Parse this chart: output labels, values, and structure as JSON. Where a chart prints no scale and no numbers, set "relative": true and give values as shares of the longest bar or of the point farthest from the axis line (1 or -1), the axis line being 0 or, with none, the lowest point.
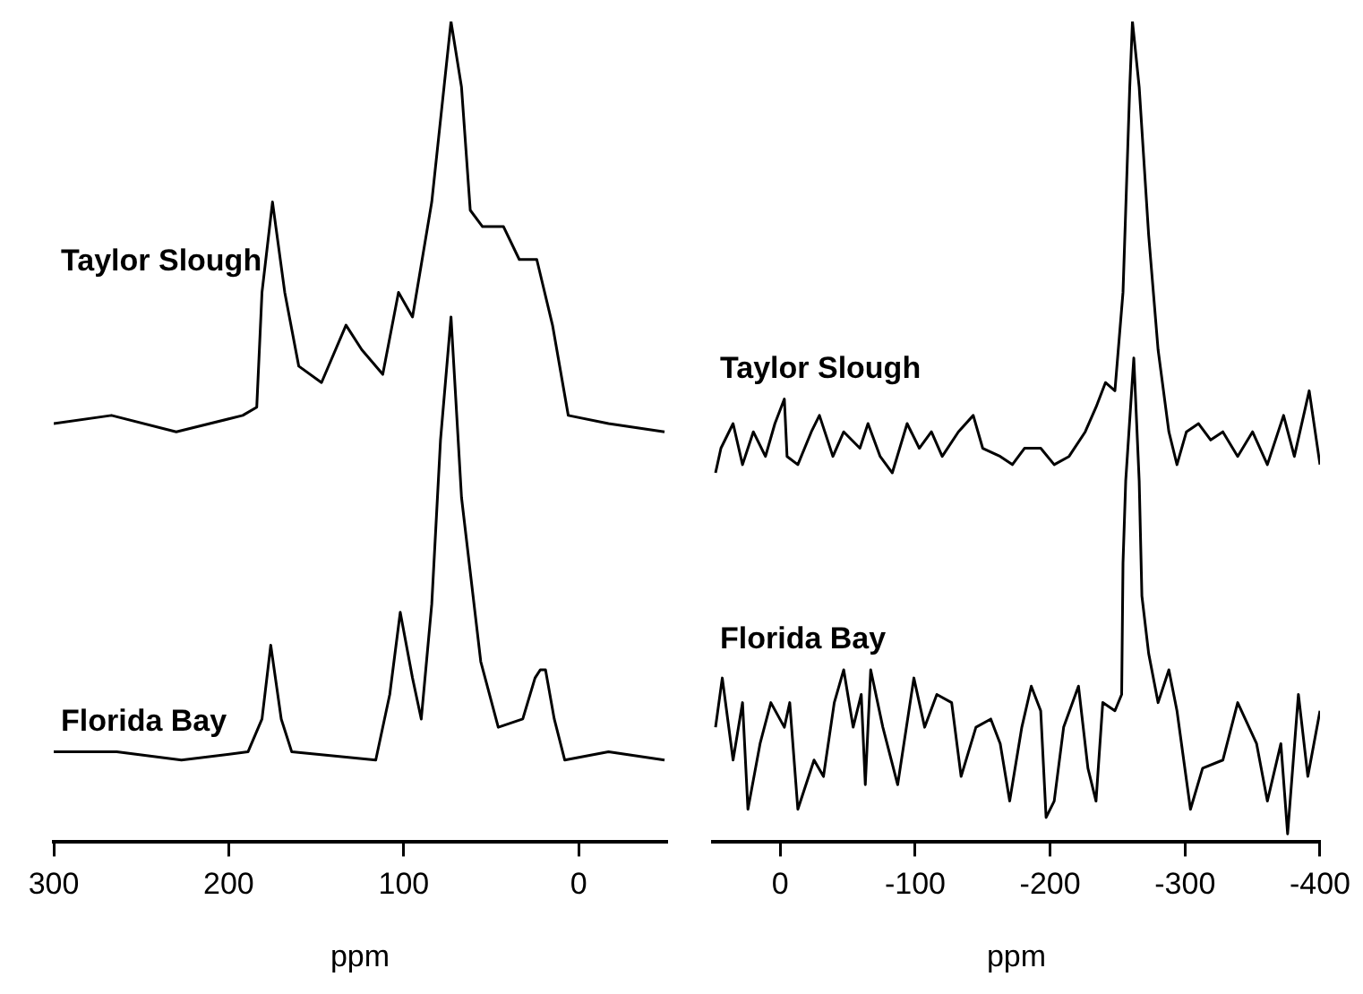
{
  "chart_data": [
    {
      "type": "line",
      "relative": true,
      "xlabel": "ppm",
      "xlim": [
        300,
        -50
      ],
      "xticks": [
        300,
        200,
        100,
        0
      ],
      "series": [
        {
          "name": "Taylor Slough",
          "color": "#000000",
          "x": [
            300,
            267,
            230,
            192,
            184,
            181,
            175,
            168,
            160,
            147,
            133,
            124,
            112,
            103,
            95,
            84,
            77,
            73,
            67,
            62,
            55,
            43,
            34,
            24,
            15,
            6,
            -17,
            -49
          ],
          "values": [
            0.51,
            0.52,
            0.5,
            0.52,
            0.53,
            0.67,
            0.78,
            0.67,
            0.58,
            0.56,
            0.63,
            0.6,
            0.57,
            0.67,
            0.64,
            0.78,
            0.92,
            1,
            0.92,
            0.77,
            0.75,
            0.75,
            0.71,
            0.71,
            0.63,
            0.52,
            0.51,
            0.5
          ]
        },
        {
          "name": "Florida Bay",
          "color": "#000000",
          "x": [
            300,
            264,
            227,
            189,
            181,
            176,
            170,
            164,
            116,
            108,
            102,
            95,
            90,
            84,
            79,
            73,
            67,
            56,
            46,
            32,
            25,
            22,
            19,
            14,
            8,
            -17,
            -49
          ],
          "values": [
            0.11,
            0.11,
            0.1,
            0.11,
            0.15,
            0.24,
            0.15,
            0.11,
            0.1,
            0.18,
            0.28,
            0.2,
            0.15,
            0.29,
            0.49,
            0.64,
            0.42,
            0.22,
            0.14,
            0.15,
            0.2,
            0.21,
            0.21,
            0.15,
            0.1,
            0.11,
            0.1
          ]
        }
      ]
    },
    {
      "type": "line",
      "relative": true,
      "xlabel": "ppm",
      "xlim": [
        50,
        -400
      ],
      "xticks": [
        0,
        -100,
        -200,
        -300,
        -400
      ],
      "series": [
        {
          "name": "Taylor Slough",
          "color": "#000000",
          "x": [
            48,
            44,
            35,
            28,
            20,
            11,
            4,
            -3,
            -5,
            -13,
            -23,
            -29,
            -39,
            -47,
            -59,
            -65,
            -74,
            -83,
            -94,
            -103,
            -112,
            -120,
            -132,
            -143,
            -150,
            -163,
            -172,
            -181,
            -193,
            -203,
            -214,
            -226,
            -234,
            -241,
            -248,
            -254,
            -259,
            -261,
            -266,
            -273,
            -280,
            -288,
            -294,
            -301,
            -310,
            -319,
            -328,
            -339,
            -350,
            -361,
            -373,
            -381,
            -392,
            -400
          ],
          "values": [
            0.45,
            0.48,
            0.51,
            0.46,
            0.5,
            0.47,
            0.51,
            0.54,
            0.47,
            0.46,
            0.5,
            0.52,
            0.47,
            0.5,
            0.48,
            0.51,
            0.47,
            0.45,
            0.51,
            0.48,
            0.5,
            0.47,
            0.5,
            0.52,
            0.48,
            0.47,
            0.46,
            0.48,
            0.48,
            0.46,
            0.47,
            0.5,
            0.53,
            0.56,
            0.55,
            0.67,
            0.92,
            1,
            0.92,
            0.74,
            0.6,
            0.5,
            0.46,
            0.5,
            0.51,
            0.49,
            0.5,
            0.47,
            0.5,
            0.46,
            0.52,
            0.47,
            0.55,
            0.46
          ]
        },
        {
          "name": "Florida Bay",
          "color": "#000000",
          "x": [
            48,
            43,
            35,
            28,
            24,
            15,
            7,
            -3,
            -7,
            -13,
            -25,
            -32,
            -40,
            -47,
            -54,
            -60,
            -63,
            -67,
            -76,
            -87,
            -99,
            -107,
            -116,
            -127,
            -134,
            -145,
            -156,
            -163,
            -170,
            -179,
            -186,
            -193,
            -197,
            -203,
            -210,
            -221,
            -228,
            -234,
            -239,
            -248,
            -253,
            -254,
            -256,
            -262,
            -266,
            -268,
            -273,
            -280,
            -288,
            -294,
            -304,
            -313,
            -328,
            -339,
            -353,
            -361,
            -371,
            -376,
            -384,
            -391,
            -400
          ],
          "values": [
            0.14,
            0.2,
            0.1,
            0.17,
            0.04,
            0.12,
            0.17,
            0.14,
            0.17,
            0.04,
            0.1,
            0.08,
            0.17,
            0.21,
            0.14,
            0.18,
            0.07,
            0.21,
            0.14,
            0.07,
            0.2,
            0.14,
            0.18,
            0.17,
            0.08,
            0.14,
            0.15,
            0.12,
            0.05,
            0.14,
            0.19,
            0.16,
            0.03,
            0.05,
            0.14,
            0.19,
            0.09,
            0.05,
            0.17,
            0.16,
            0.18,
            0.34,
            0.44,
            0.59,
            0.44,
            0.3,
            0.23,
            0.17,
            0.21,
            0.16,
            0.04,
            0.09,
            0.1,
            0.17,
            0.12,
            0.05,
            0.12,
            0.01,
            0.18,
            0.08,
            0.16
          ]
        }
      ]
    }
  ]
}
